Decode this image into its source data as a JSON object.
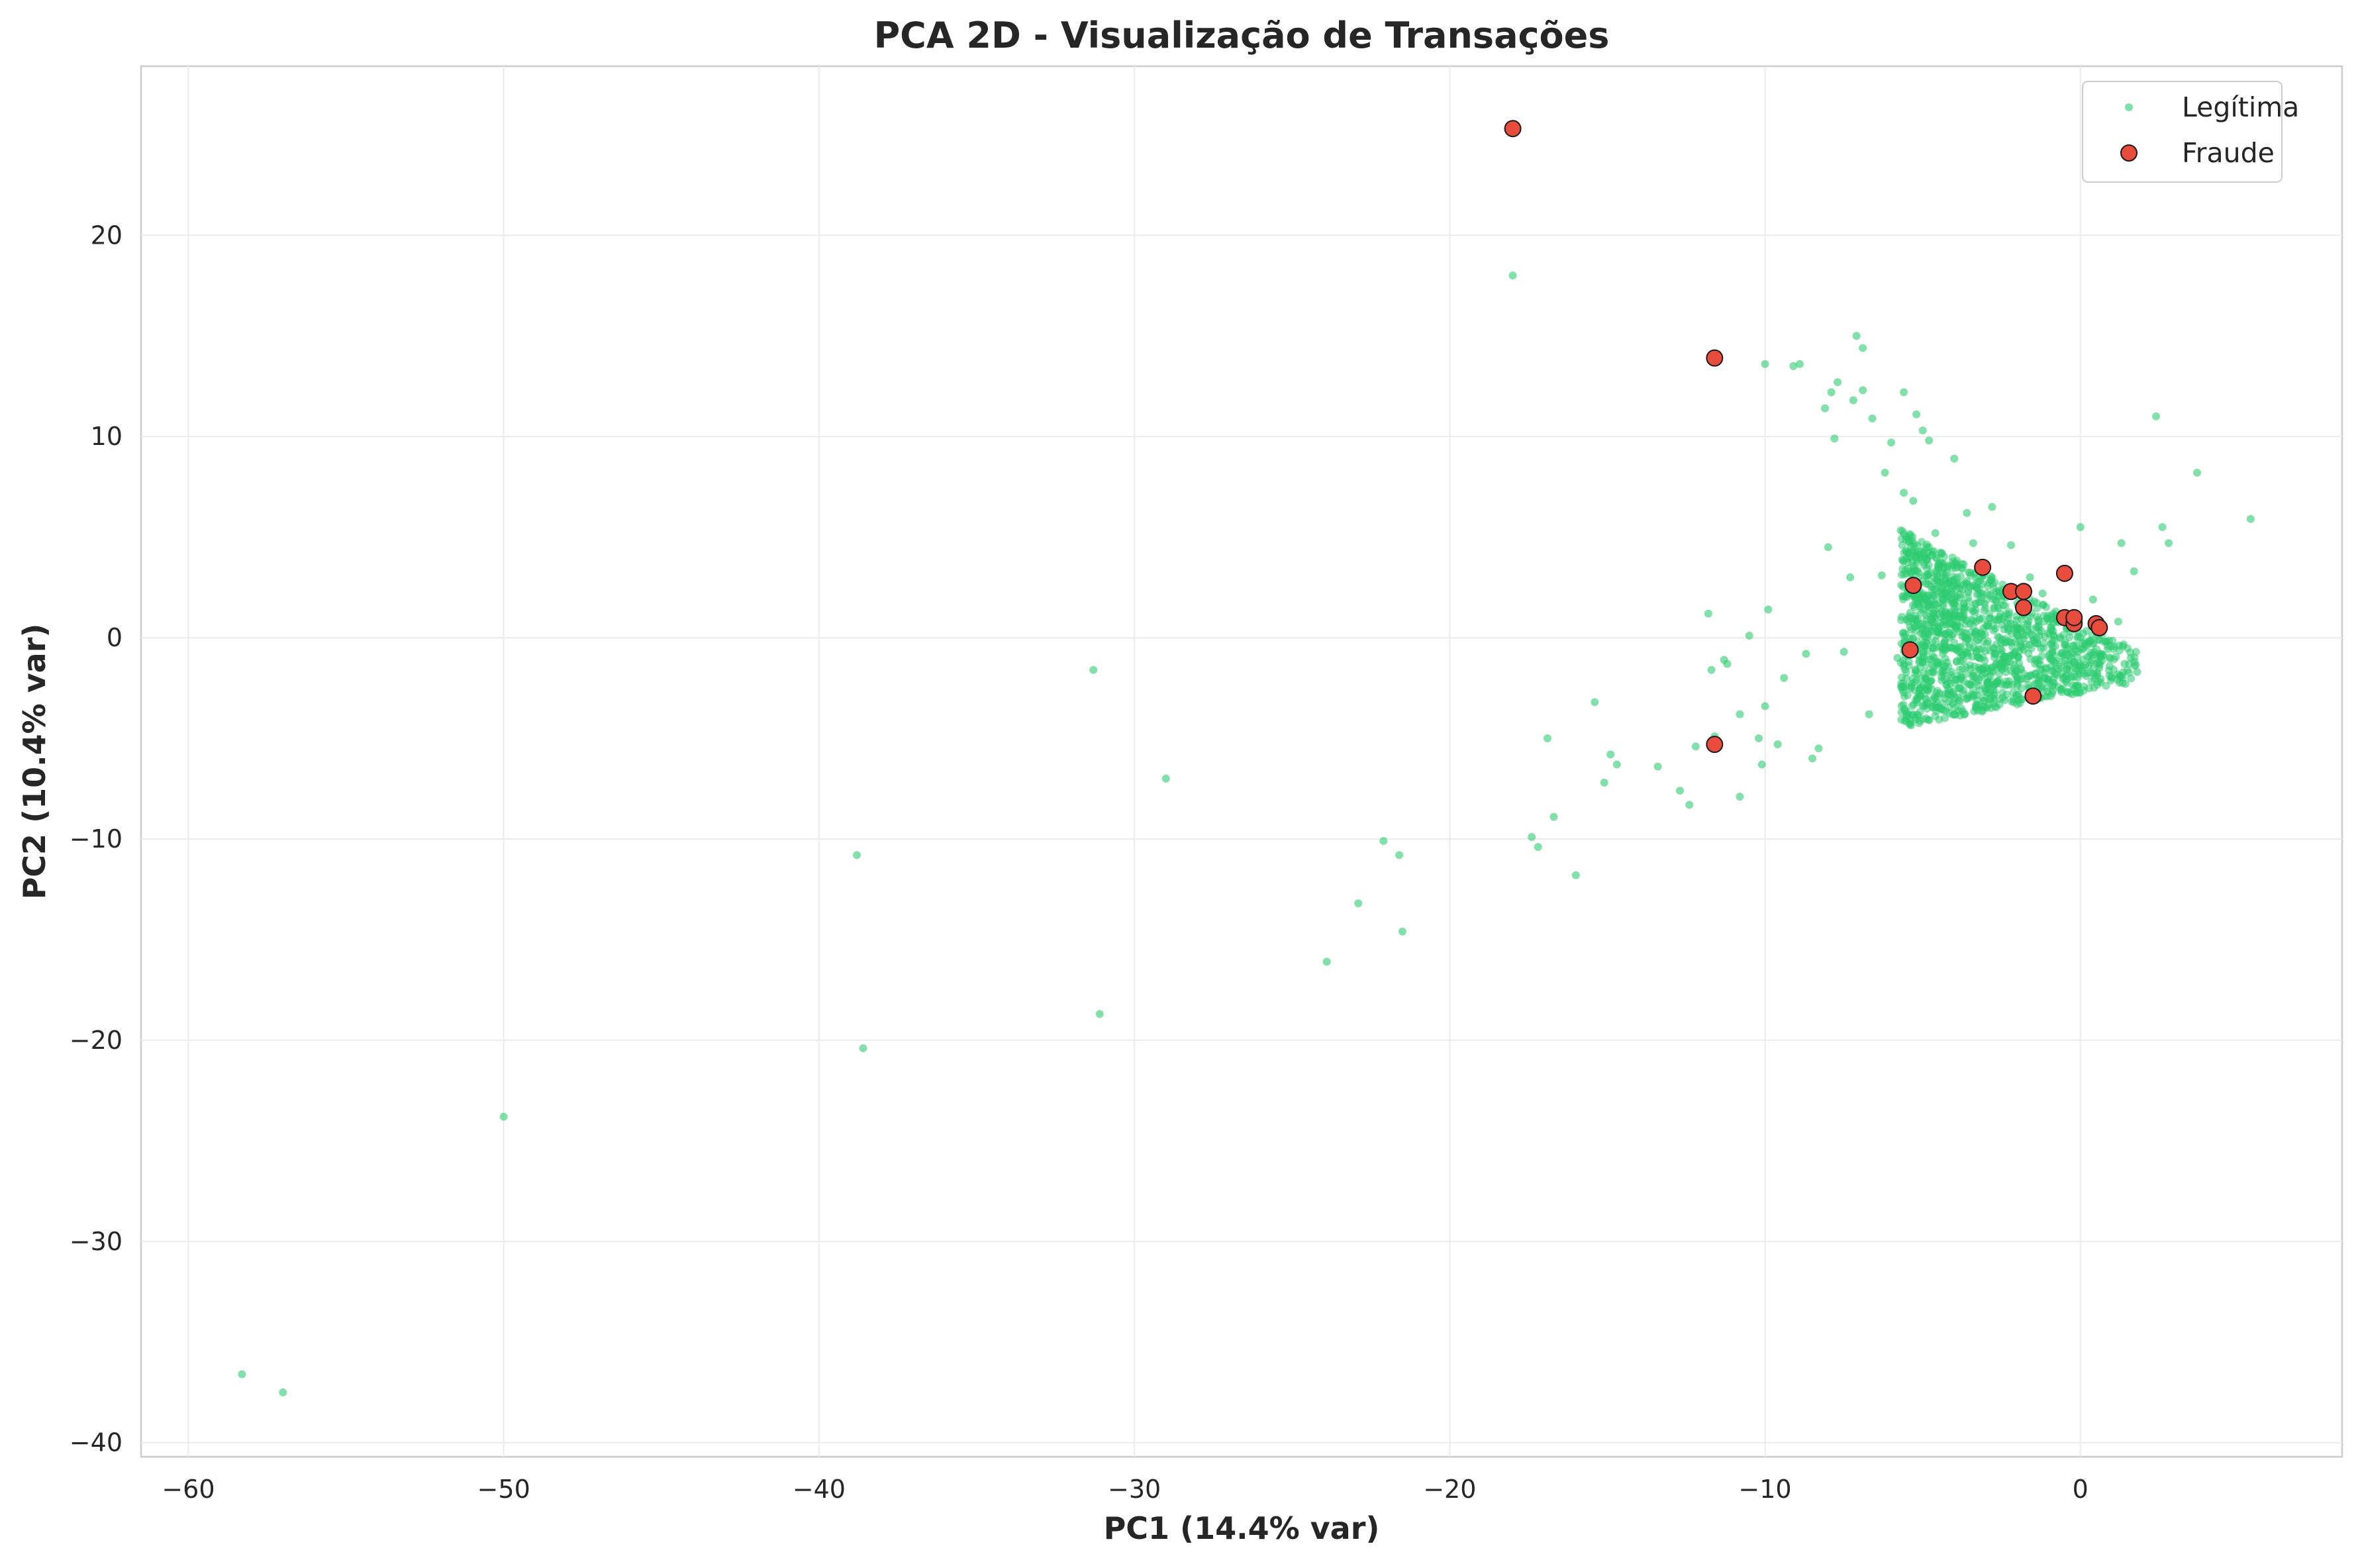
{
  "chart_data": {
    "type": "scatter",
    "title": "PCA 2D - Visualização de Transações",
    "xlabel": "PC1 (14.4% var)",
    "ylabel": "PC2 (10.4% var)",
    "xlim": [
      -61.5,
      8.3
    ],
    "ylim": [
      -40.7,
      28.4
    ],
    "xticks": [
      -60,
      -50,
      -40,
      -30,
      -20,
      -10,
      0
    ],
    "yticks": [
      -40,
      -30,
      -20,
      -10,
      0,
      10,
      20
    ],
    "grid": true,
    "legend_position": "top-right",
    "series": [
      {
        "name": "Legítima",
        "color": "#2ecc71",
        "marker": "small-dot",
        "points": [
          [
            -58.3,
            -36.6
          ],
          [
            -57.0,
            -37.5
          ],
          [
            -50.0,
            -23.8
          ],
          [
            -38.6,
            -20.4
          ],
          [
            -38.8,
            -10.8
          ],
          [
            -31.3,
            -1.6
          ],
          [
            -31.1,
            -18.7
          ],
          [
            -29.0,
            -7.0
          ],
          [
            -23.9,
            -16.1
          ],
          [
            -22.9,
            -13.2
          ],
          [
            -22.1,
            -10.1
          ],
          [
            -21.6,
            -10.8
          ],
          [
            -21.5,
            -14.6
          ],
          [
            -18.0,
            18.0
          ],
          [
            -17.4,
            -9.9
          ],
          [
            -17.2,
            -10.4
          ],
          [
            -16.9,
            -5.0
          ],
          [
            -16.7,
            -8.9
          ],
          [
            -16.0,
            -11.8
          ],
          [
            -15.4,
            -3.2
          ],
          [
            -15.1,
            -7.2
          ],
          [
            -14.9,
            -5.8
          ],
          [
            -14.7,
            -6.3
          ],
          [
            -13.4,
            -6.4
          ],
          [
            -12.7,
            -7.6
          ],
          [
            -12.4,
            -8.3
          ],
          [
            -12.2,
            -5.4
          ],
          [
            -11.8,
            1.2
          ],
          [
            -11.7,
            -1.6
          ],
          [
            -11.6,
            -4.9
          ],
          [
            -11.3,
            -1.1
          ],
          [
            -11.2,
            -1.3
          ],
          [
            -10.8,
            -7.9
          ],
          [
            -10.8,
            -3.8
          ],
          [
            -10.5,
            0.1
          ],
          [
            -10.2,
            -5.0
          ],
          [
            -10.1,
            -6.3
          ],
          [
            -10.0,
            -3.4
          ],
          [
            -10.0,
            13.6
          ],
          [
            -9.9,
            1.4
          ],
          [
            -9.6,
            -5.3
          ],
          [
            -9.4,
            -2.0
          ],
          [
            -9.1,
            13.5
          ],
          [
            -8.9,
            13.6
          ],
          [
            -8.7,
            -0.8
          ],
          [
            -8.5,
            -6.0
          ],
          [
            -8.3,
            -5.5
          ],
          [
            -8.1,
            11.4
          ],
          [
            -8.0,
            4.5
          ],
          [
            -7.9,
            12.2
          ],
          [
            -7.8,
            9.9
          ],
          [
            -7.7,
            12.7
          ],
          [
            -7.5,
            -0.7
          ],
          [
            -7.3,
            3.0
          ],
          [
            -7.2,
            11.8
          ],
          [
            -7.1,
            15.0
          ],
          [
            -6.9,
            14.4
          ],
          [
            -6.9,
            12.3
          ],
          [
            -6.7,
            -3.8
          ],
          [
            -6.6,
            10.9
          ],
          [
            -6.3,
            3.1
          ],
          [
            -6.2,
            8.2
          ],
          [
            -6.0,
            9.7
          ],
          [
            -5.8,
            -1.0
          ],
          [
            -5.6,
            7.2
          ],
          [
            -5.6,
            12.2
          ],
          [
            -5.4,
            4.0
          ],
          [
            -5.3,
            6.8
          ],
          [
            -5.2,
            11.1
          ],
          [
            -5.0,
            10.3
          ],
          [
            -4.8,
            9.8
          ],
          [
            -4.6,
            5.2
          ],
          [
            -4.4,
            1.3
          ],
          [
            -4.2,
            -2.8
          ],
          [
            -4.0,
            8.9
          ],
          [
            -3.8,
            2.0
          ],
          [
            -3.6,
            6.2
          ],
          [
            -3.4,
            4.7
          ],
          [
            -3.2,
            -1.6
          ],
          [
            -3.0,
            3.4
          ],
          [
            -2.8,
            6.5
          ],
          [
            -2.6,
            0.9
          ],
          [
            -2.4,
            -3.1
          ],
          [
            -2.2,
            4.6
          ],
          [
            -2.0,
            1.7
          ],
          [
            -1.8,
            -0.6
          ],
          [
            -1.6,
            3.0
          ],
          [
            -1.4,
            -2.3
          ],
          [
            -1.2,
            2.2
          ],
          [
            -1.0,
            -0.9
          ],
          [
            -0.8,
            1.1
          ],
          [
            -0.6,
            -1.8
          ],
          [
            -0.4,
            0.5
          ],
          [
            -0.2,
            -1.2
          ],
          [
            0.0,
            5.5
          ],
          [
            0.2,
            -0.4
          ],
          [
            0.4,
            1.9
          ],
          [
            0.6,
            -1.5
          ],
          [
            0.8,
            -0.2
          ],
          [
            1.0,
            -2.0
          ],
          [
            1.2,
            0.8
          ],
          [
            1.3,
            4.7
          ],
          [
            1.4,
            -1.3
          ],
          [
            1.6,
            -1.0
          ],
          [
            1.7,
            3.3
          ],
          [
            1.8,
            -1.7
          ],
          [
            2.4,
            11.0
          ],
          [
            2.6,
            5.5
          ],
          [
            2.8,
            4.7
          ],
          [
            3.7,
            8.2
          ],
          [
            5.4,
            5.9
          ]
        ]
      },
      {
        "name": "Fraude",
        "color": "#e74c3c",
        "marker": "circle-edge",
        "points": [
          [
            -18.0,
            25.3
          ],
          [
            -11.6,
            13.9
          ],
          [
            -11.6,
            -5.3
          ],
          [
            -5.3,
            2.6
          ],
          [
            -5.4,
            -0.6
          ],
          [
            -3.1,
            3.5
          ],
          [
            -2.2,
            2.3
          ],
          [
            -1.8,
            2.3
          ],
          [
            -1.8,
            1.5
          ],
          [
            -1.5,
            -2.9
          ],
          [
            -0.5,
            3.2
          ],
          [
            -0.5,
            1.0
          ],
          [
            -0.2,
            0.7
          ],
          [
            -0.2,
            1.0
          ],
          [
            0.5,
            0.7
          ],
          [
            0.6,
            0.5
          ]
        ]
      }
    ]
  }
}
